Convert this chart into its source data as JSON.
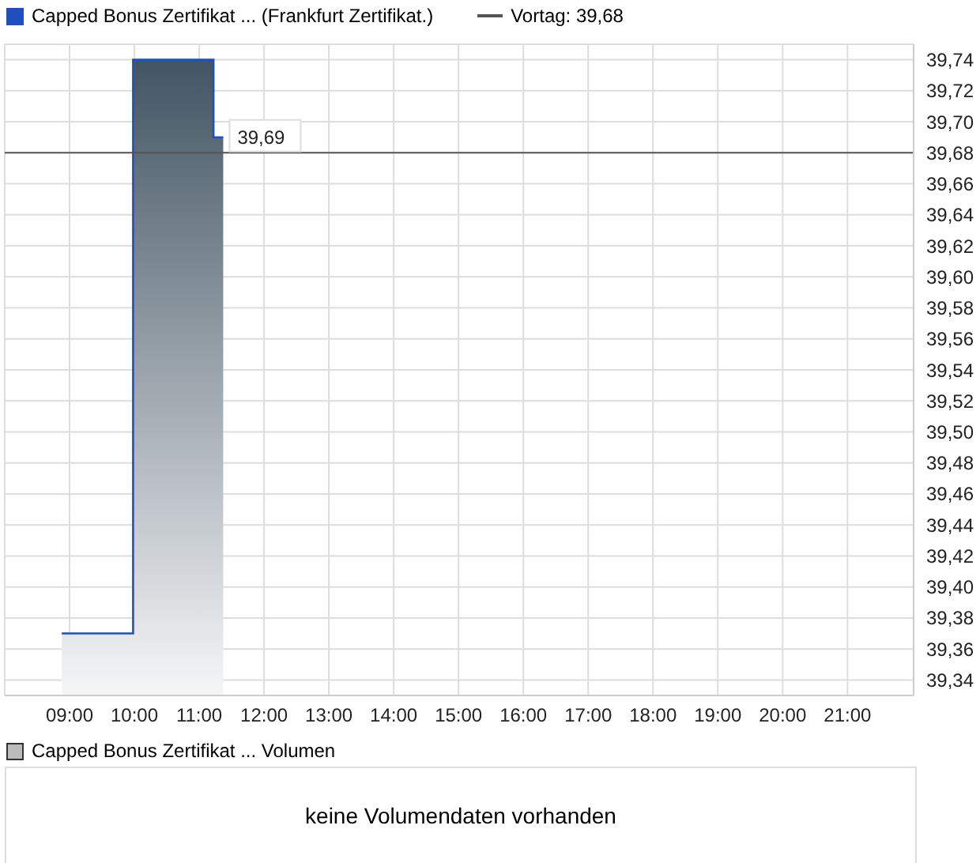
{
  "chart_data": [
    {
      "type": "step",
      "legend": "top left",
      "grid": true,
      "x": [
        8.88,
        9.98,
        11.22,
        11.37
      ],
      "series": [
        {
          "type": "area",
          "name": "Capped Bonus Zertifikat ... (Frankfurt Zertifikat.)",
          "color": "#1f4fbf",
          "values": [
            39.37,
            39.74,
            39.69,
            39.69
          ],
          "value_labels": [
            null,
            null,
            null,
            "39,69"
          ]
        }
      ],
      "xlim": [
        8,
        22.02
      ],
      "xticks": [
        {
          "value": 9,
          "label": "09:00"
        },
        {
          "value": 10,
          "label": "10:00"
        },
        {
          "value": 11,
          "label": "11:00"
        },
        {
          "value": 12,
          "label": "12:00"
        },
        {
          "value": 13,
          "label": "13:00"
        },
        {
          "value": 14,
          "label": "14:00"
        },
        {
          "value": 15,
          "label": "15:00"
        },
        {
          "value": 16,
          "label": "16:00"
        },
        {
          "value": 17,
          "label": "17:00"
        },
        {
          "value": 18,
          "label": "18:00"
        },
        {
          "value": 19,
          "label": "19:00"
        },
        {
          "value": 20,
          "label": "20:00"
        },
        {
          "value": 21,
          "label": "21:00"
        }
      ],
      "ylim": [
        39.33,
        39.75
      ],
      "yticks": [
        {
          "value": 39.34,
          "label": "39,34"
        },
        {
          "value": 39.36,
          "label": "39,36"
        },
        {
          "value": 39.38,
          "label": "39,38"
        },
        {
          "value": 39.4,
          "label": "39,40"
        },
        {
          "value": 39.42,
          "label": "39,42"
        },
        {
          "value": 39.44,
          "label": "39,44"
        },
        {
          "value": 39.46,
          "label": "39,46"
        },
        {
          "value": 39.48,
          "label": "39,48"
        },
        {
          "value": 39.5,
          "label": "39,50"
        },
        {
          "value": 39.52,
          "label": "39,52"
        },
        {
          "value": 39.54,
          "label": "39,54"
        },
        {
          "value": 39.56,
          "label": "39,56"
        },
        {
          "value": 39.58,
          "label": "39,58"
        },
        {
          "value": 39.6,
          "label": "39,60"
        },
        {
          "value": 39.62,
          "label": "39,62"
        },
        {
          "value": 39.64,
          "label": "39,64"
        },
        {
          "value": 39.66,
          "label": "39,66"
        },
        {
          "value": 39.68,
          "label": "39,68"
        },
        {
          "value": 39.7,
          "label": "39,70"
        },
        {
          "value": 39.72,
          "label": "39,72"
        },
        {
          "value": 39.74,
          "label": "39,74"
        }
      ],
      "ref_lines": [
        {
          "axis": "y",
          "value": 39.68,
          "label": "Vortag: 39,68",
          "color": "#555555"
        }
      ]
    },
    {
      "type": "other",
      "title": "Capped Bonus Zertifikat ... Volumen",
      "annotations": [
        "keine Volumendaten vorhanden"
      ]
    }
  ]
}
